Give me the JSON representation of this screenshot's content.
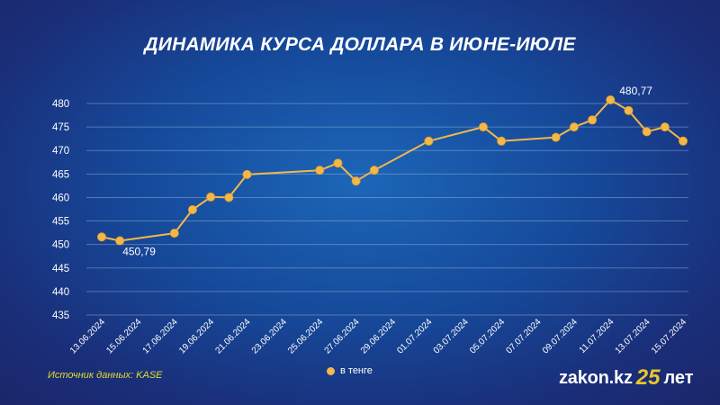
{
  "chart_data": {
    "type": "line",
    "title": "ДИНАМИКА КУРСА ДОЛЛАРА В ИЮНЕ-ИЮЛЕ",
    "x_tick_labels": [
      "13.06.2024",
      "15.06.2024",
      "17.06.2024",
      "19.06.2024",
      "21.06.2024",
      "23.06.2024",
      "25.06.2024",
      "27.06.2024",
      "29.06.2024",
      "01.07.2024",
      "03.07.2024",
      "05.07.2024",
      "07.07.2024",
      "09.07.2024",
      "11.07.2024",
      "13.07.2024",
      "15.07.2024"
    ],
    "y_ticks": [
      435,
      440,
      445,
      450,
      455,
      460,
      465,
      470,
      475,
      480
    ],
    "ylim": [
      435,
      480
    ],
    "grid": true,
    "legend_position": "bottom-center",
    "series": [
      {
        "name": "в тенге",
        "color": "#f2b84a",
        "points": [
          {
            "x": "13.06.2024",
            "y": 451.6
          },
          {
            "x": "14.06.2024",
            "y": 450.79
          },
          {
            "x": "17.06.2024",
            "y": 452.4
          },
          {
            "x": "18.06.2024",
            "y": 457.4
          },
          {
            "x": "19.06.2024",
            "y": 460.1
          },
          {
            "x": "20.06.2024",
            "y": 460.0
          },
          {
            "x": "21.06.2024",
            "y": 464.9
          },
          {
            "x": "25.06.2024",
            "y": 465.8
          },
          {
            "x": "26.06.2024",
            "y": 467.3
          },
          {
            "x": "27.06.2024",
            "y": 463.5
          },
          {
            "x": "28.06.2024",
            "y": 465.8
          },
          {
            "x": "01.07.2024",
            "y": 472.0
          },
          {
            "x": "04.07.2024",
            "y": 475.0
          },
          {
            "x": "05.07.2024",
            "y": 472.0
          },
          {
            "x": "08.07.2024",
            "y": 472.8
          },
          {
            "x": "09.07.2024",
            "y": 475.0
          },
          {
            "x": "10.07.2024",
            "y": 476.5
          },
          {
            "x": "11.07.2024",
            "y": 480.77
          },
          {
            "x": "12.07.2024",
            "y": 478.5
          },
          {
            "x": "13.07.2024",
            "y": 474.0
          },
          {
            "x": "14.07.2024",
            "y": 475.0
          },
          {
            "x": "15.07.2024",
            "y": 472.0
          }
        ]
      }
    ],
    "annotations": [
      {
        "x": "14.06.2024",
        "text": "450,79"
      },
      {
        "x": "11.07.2024",
        "text": "480,77"
      }
    ]
  },
  "footer": {
    "source": "Источник данных: KASE",
    "brand_site": "zakon.kz",
    "brand_number": "25",
    "brand_word": "лет"
  }
}
